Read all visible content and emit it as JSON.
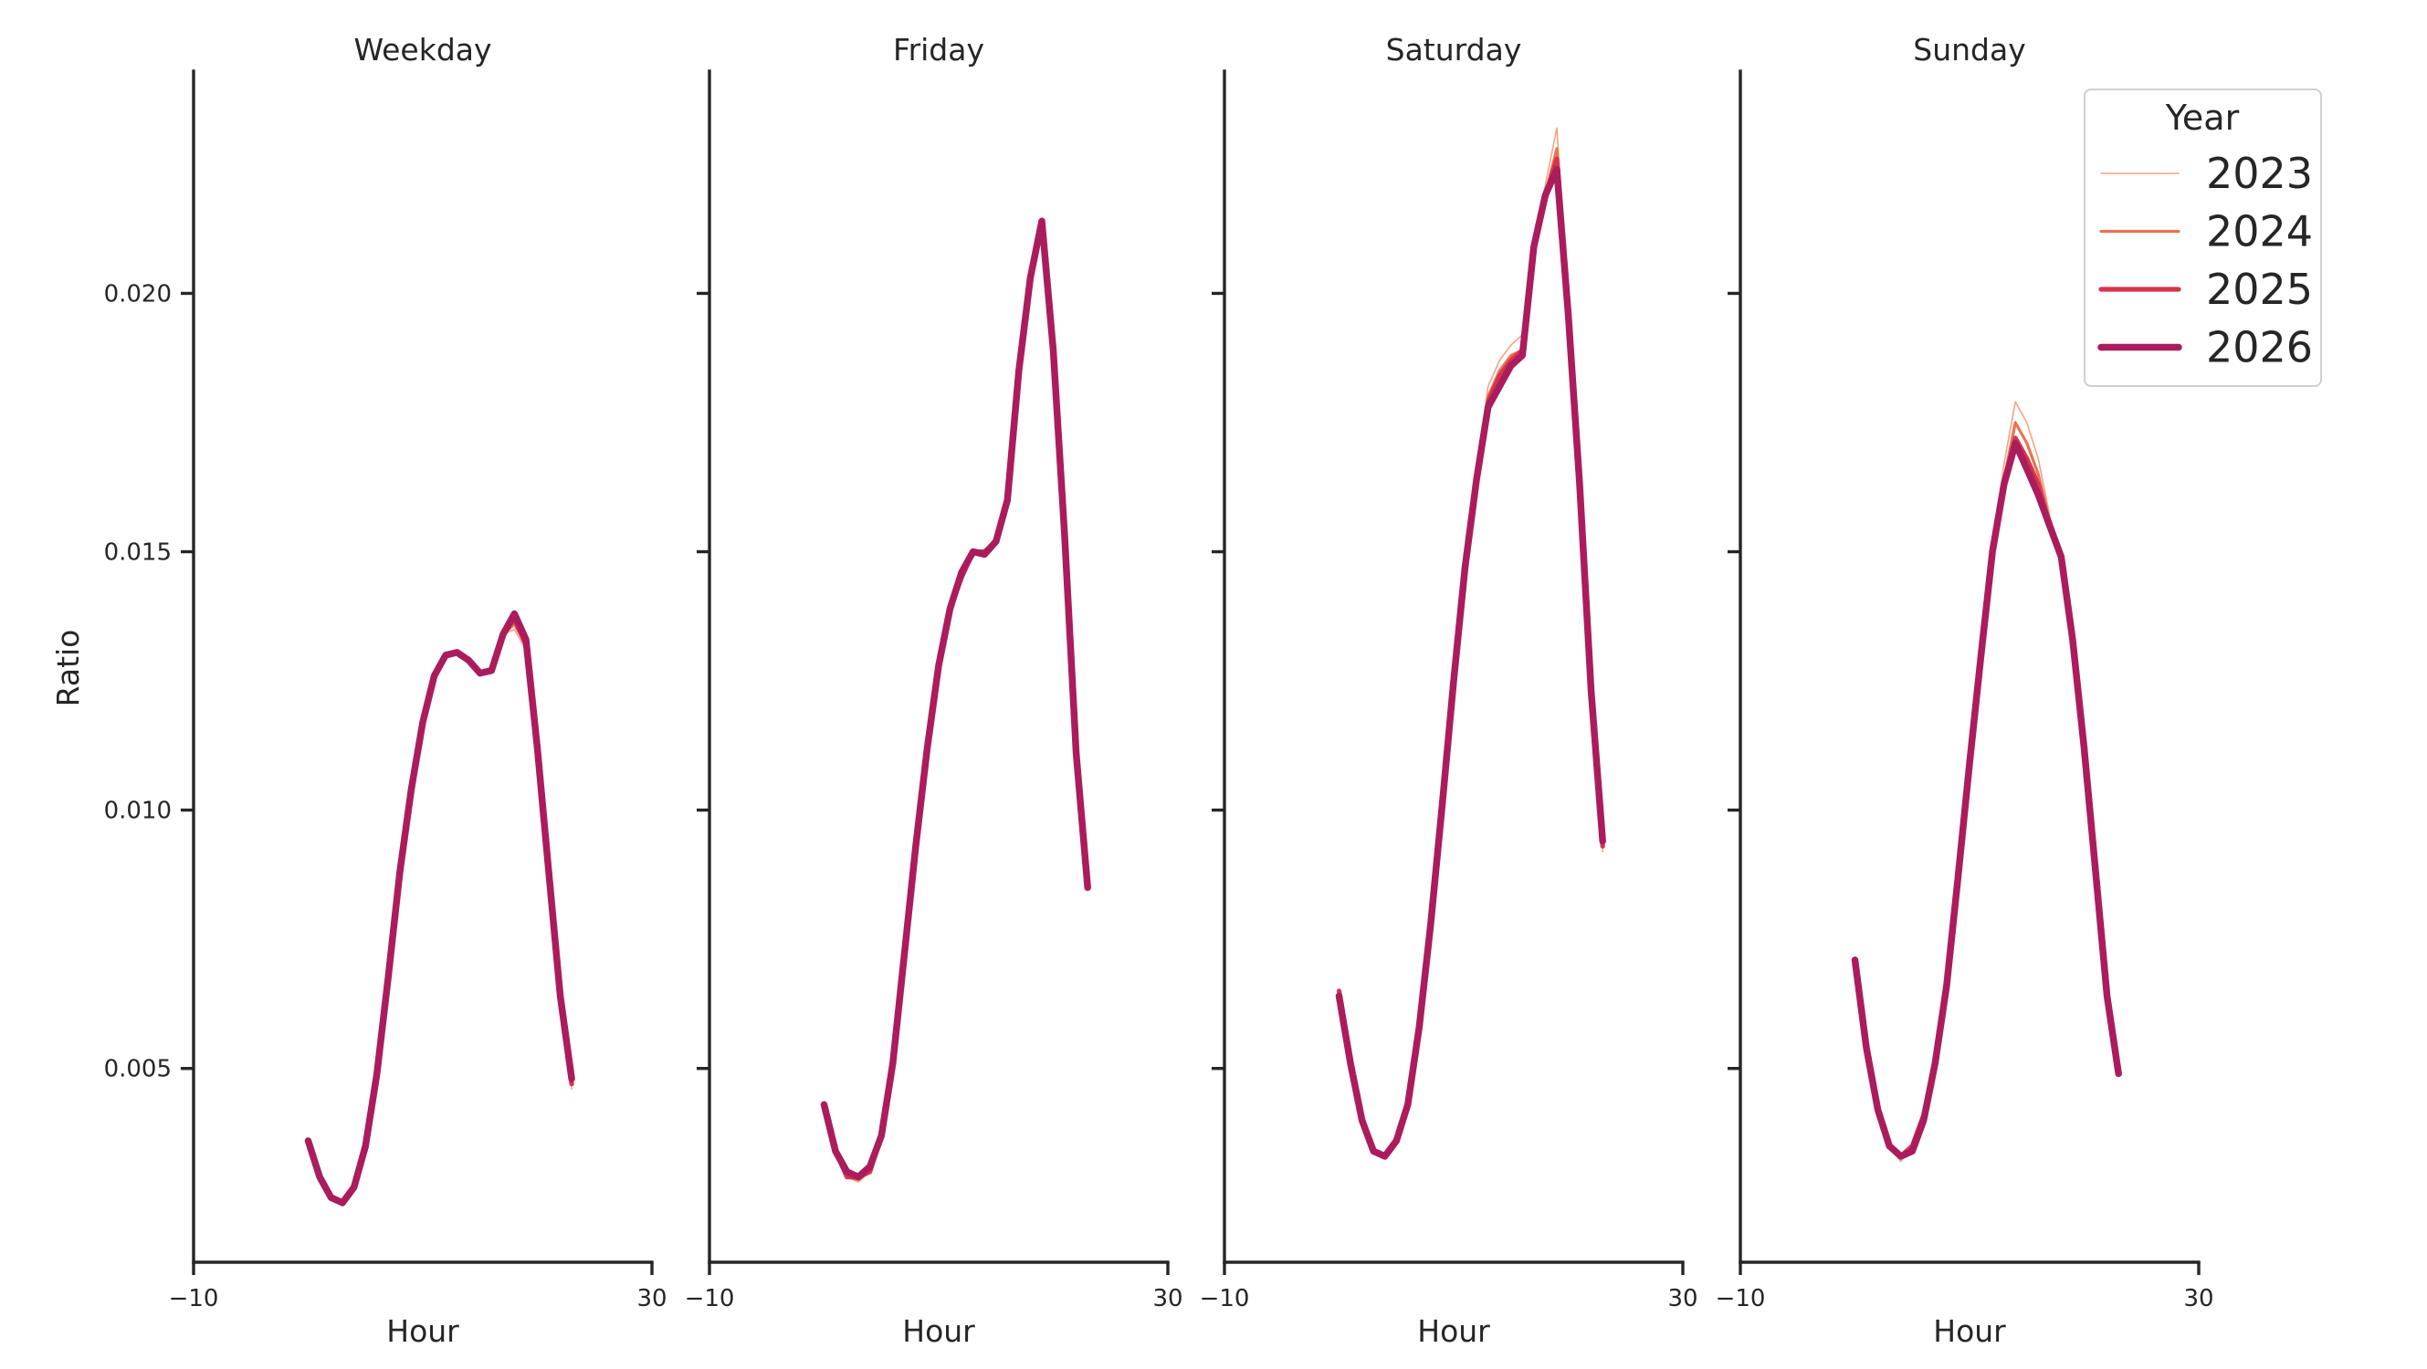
{
  "chart_data": {
    "type": "line",
    "facet_titles": [
      "Weekday",
      "Friday",
      "Saturday",
      "Sunday"
    ],
    "xlabel": "Hour",
    "ylabel": "Ratio",
    "xlim": [
      -10,
      30
    ],
    "x_ticks": [
      -10,
      30
    ],
    "x_tick_labels": [
      "−10",
      "30"
    ],
    "ylim": [
      0.00125,
      0.0243
    ],
    "y_ticks": [
      0.005,
      0.01,
      0.015,
      0.02
    ],
    "y_tick_labels": [
      "0.005",
      "0.010",
      "0.015",
      "0.020"
    ],
    "legend": {
      "title": "Year",
      "position": "top-right",
      "entries": [
        "2023",
        "2024",
        "2025",
        "2026"
      ]
    },
    "series_style": [
      {
        "name": "2023",
        "color": "#f3a583",
        "width": 1.6
      },
      {
        "name": "2024",
        "color": "#ec7151",
        "width": 3.2
      },
      {
        "name": "2025",
        "color": "#d6344f",
        "width": 5.2
      },
      {
        "name": "2026",
        "color": "#ab1c5d",
        "width": 7.5
      }
    ],
    "x": [
      0,
      1,
      2,
      3,
      4,
      5,
      6,
      7,
      8,
      9,
      10,
      11,
      12,
      13,
      14,
      15,
      16,
      17,
      18,
      19,
      20,
      21,
      22,
      23
    ],
    "panels": [
      {
        "title": "Weekday",
        "series": [
          {
            "name": "2023",
            "values": [
              0.0036,
              0.0029,
              0.00245,
              0.00235,
              0.0027,
              0.0035,
              0.0049,
              0.0068,
              0.0088,
              0.0104,
              0.0117,
              0.0126,
              0.013,
              0.01305,
              0.0129,
              0.01265,
              0.0127,
              0.0134,
              0.0135,
              0.0131,
              0.0112,
              0.0088,
              0.0063,
              0.0046
            ]
          },
          {
            "name": "2024",
            "values": [
              0.0036,
              0.0029,
              0.0025,
              0.0024,
              0.00275,
              0.0035,
              0.0049,
              0.0068,
              0.0088,
              0.0104,
              0.0117,
              0.0126,
              0.013,
              0.01305,
              0.0129,
              0.01265,
              0.0127,
              0.0134,
              0.0136,
              0.0132,
              0.0112,
              0.0088,
              0.0063,
              0.0047
            ]
          },
          {
            "name": "2025",
            "values": [
              0.0036,
              0.0029,
              0.0025,
              0.0024,
              0.0027,
              0.0035,
              0.0049,
              0.0068,
              0.0088,
              0.0104,
              0.0117,
              0.0126,
              0.013,
              0.01305,
              0.0129,
              0.01265,
              0.0127,
              0.0134,
              0.0137,
              0.0132,
              0.0112,
              0.0088,
              0.0063,
              0.0047
            ]
          },
          {
            "name": "2026",
            "values": [
              0.0036,
              0.0029,
              0.0025,
              0.0024,
              0.0027,
              0.0035,
              0.0049,
              0.0068,
              0.0088,
              0.0104,
              0.0117,
              0.0126,
              0.013,
              0.01305,
              0.0129,
              0.01265,
              0.0127,
              0.0134,
              0.0138,
              0.0133,
              0.0112,
              0.0088,
              0.0064,
              0.0048
            ]
          }
        ]
      },
      {
        "title": "Friday",
        "series": [
          {
            "name": "2023",
            "values": [
              0.0043,
              0.0034,
              0.0029,
              0.0028,
              0.003,
              0.0037,
              0.0051,
              0.0072,
              0.0093,
              0.0112,
              0.0128,
              0.0139,
              0.0145,
              0.015,
              0.015,
              0.0152,
              0.016,
              0.0185,
              0.0203,
              0.0213,
              0.0189,
              0.0153,
              0.0111,
              0.0085
            ]
          },
          {
            "name": "2024",
            "values": [
              0.0043,
              0.0034,
              0.0029,
              0.00285,
              0.003,
              0.0037,
              0.0051,
              0.0072,
              0.0093,
              0.0112,
              0.0128,
              0.0139,
              0.0145,
              0.015,
              0.015,
              0.0152,
              0.016,
              0.0185,
              0.0203,
              0.0214,
              0.0189,
              0.0153,
              0.0111,
              0.0085
            ]
          },
          {
            "name": "2025",
            "values": [
              0.0043,
              0.0034,
              0.0029,
              0.0029,
              0.003,
              0.0037,
              0.0051,
              0.0072,
              0.0093,
              0.0112,
              0.0128,
              0.0139,
              0.0145,
              0.015,
              0.015,
              0.0152,
              0.016,
              0.0185,
              0.0203,
              0.0214,
              0.0189,
              0.0153,
              0.0111,
              0.0085
            ]
          },
          {
            "name": "2026",
            "values": [
              0.0043,
              0.0034,
              0.003,
              0.0029,
              0.0031,
              0.0037,
              0.0051,
              0.0072,
              0.0093,
              0.0112,
              0.0128,
              0.0139,
              0.0146,
              0.015,
              0.01495,
              0.0152,
              0.016,
              0.0185,
              0.0203,
              0.0214,
              0.0189,
              0.0153,
              0.0111,
              0.0085
            ]
          }
        ]
      },
      {
        "title": "Saturday",
        "series": [
          {
            "name": "2023",
            "values": [
              0.0065,
              0.0051,
              0.004,
              0.0034,
              0.0033,
              0.0036,
              0.0043,
              0.0058,
              0.0078,
              0.0101,
              0.0125,
              0.0147,
              0.0164,
              0.0182,
              0.0187,
              0.019,
              0.0192,
              0.021,
              0.0221,
              0.0232,
              0.0198,
              0.0165,
              0.0125,
              0.0092
            ]
          },
          {
            "name": "2024",
            "values": [
              0.0065,
              0.0051,
              0.004,
              0.0034,
              0.0033,
              0.0036,
              0.0043,
              0.0058,
              0.0078,
              0.0101,
              0.0125,
              0.0147,
              0.0164,
              0.018,
              0.0185,
              0.0188,
              0.0189,
              0.0209,
              0.0219,
              0.0228,
              0.0197,
              0.0164,
              0.0124,
              0.0093
            ]
          },
          {
            "name": "2025",
            "values": [
              0.0065,
              0.0051,
              0.004,
              0.0034,
              0.0033,
              0.0036,
              0.0043,
              0.0058,
              0.0078,
              0.0101,
              0.0125,
              0.0147,
              0.0164,
              0.0179,
              0.0184,
              0.0187,
              0.0189,
              0.0209,
              0.0219,
              0.0226,
              0.0196,
              0.0164,
              0.0124,
              0.0093
            ]
          },
          {
            "name": "2026",
            "values": [
              0.0064,
              0.0051,
              0.004,
              0.0034,
              0.0033,
              0.0036,
              0.0043,
              0.0058,
              0.0078,
              0.0101,
              0.0125,
              0.0147,
              0.0164,
              0.0178,
              0.0182,
              0.0186,
              0.0188,
              0.0209,
              0.0219,
              0.0224,
              0.0196,
              0.0163,
              0.0123,
              0.0094
            ]
          }
        ]
      },
      {
        "title": "Sunday",
        "series": [
          {
            "name": "2023",
            "values": [
              0.0071,
              0.0054,
              0.0042,
              0.0035,
              0.0032,
              0.0035,
              0.0041,
              0.0051,
              0.0066,
              0.0087,
              0.0109,
              0.013,
              0.015,
              0.0167,
              0.0179,
              0.0175,
              0.0168,
              0.0157,
              0.0149,
              0.0133,
              0.0112,
              0.0088,
              0.0064,
              0.0049
            ]
          },
          {
            "name": "2024",
            "values": [
              0.0071,
              0.0054,
              0.0042,
              0.0035,
              0.0033,
              0.0035,
              0.0041,
              0.0051,
              0.0066,
              0.0087,
              0.0109,
              0.013,
              0.015,
              0.0164,
              0.0175,
              0.0171,
              0.0165,
              0.0156,
              0.0149,
              0.0133,
              0.0112,
              0.0088,
              0.0064,
              0.0049
            ]
          },
          {
            "name": "2025",
            "values": [
              0.0071,
              0.0054,
              0.0042,
              0.0035,
              0.0033,
              0.0035,
              0.0041,
              0.0051,
              0.0066,
              0.0087,
              0.0109,
              0.013,
              0.015,
              0.0163,
              0.0172,
              0.0168,
              0.0163,
              0.0155,
              0.0149,
              0.0133,
              0.0112,
              0.0088,
              0.0064,
              0.0049
            ]
          },
          {
            "name": "2026",
            "values": [
              0.0071,
              0.0054,
              0.0042,
              0.0035,
              0.0033,
              0.0034,
              0.004,
              0.0051,
              0.0066,
              0.0087,
              0.0109,
              0.013,
              0.015,
              0.0163,
              0.0171,
              0.0166,
              0.0161,
              0.0155,
              0.0149,
              0.0133,
              0.0112,
              0.0088,
              0.0064,
              0.0049
            ]
          }
        ]
      }
    ]
  }
}
